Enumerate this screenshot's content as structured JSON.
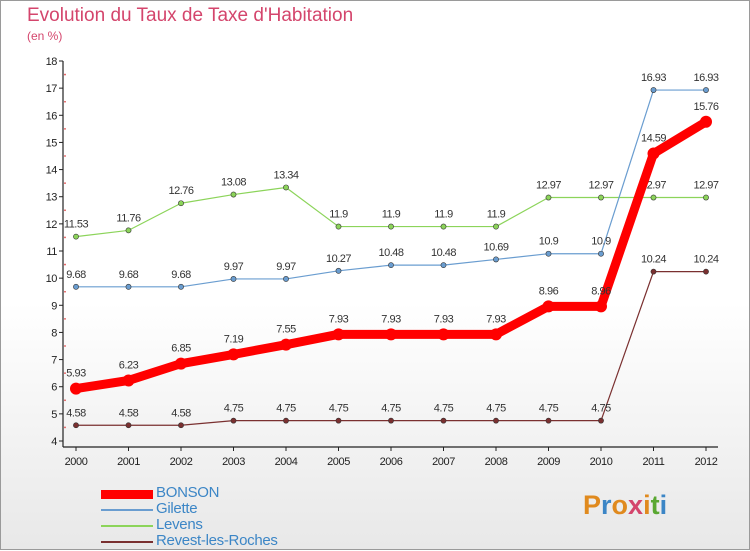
{
  "title": "Evolution du Taux de Taxe d'Habitation",
  "subtitle": "(en %)",
  "logo": {
    "letters": [
      "P",
      "r",
      "o",
      "x",
      "i",
      "t",
      "i"
    ],
    "colors": [
      "#e08a1e",
      "#3c86c6",
      "#e08a1e",
      "#d4456c",
      "#e08a1e",
      "#5aa832",
      "#3c86c6"
    ]
  },
  "chart_data": {
    "type": "line",
    "x": [
      "2000",
      "2001",
      "2002",
      "2003",
      "2004",
      "2005",
      "2006",
      "2007",
      "2008",
      "2009",
      "2010",
      "2011",
      "2012"
    ],
    "yticks": [
      "4",
      "5",
      "6",
      "7",
      "8",
      "9",
      "10",
      "11",
      "12",
      "13",
      "14",
      "15",
      "16",
      "17",
      "18"
    ],
    "ylim": [
      4,
      18
    ],
    "grid": false,
    "legend_position": "bottom-left",
    "series": [
      {
        "name": "Levens",
        "color": "#8cd45a",
        "width": 1.2,
        "marker": 2.6,
        "values": [
          11.53,
          11.76,
          12.76,
          13.08,
          13.34,
          11.9,
          11.9,
          11.9,
          11.9,
          12.97,
          12.97,
          12.97,
          12.97
        ],
        "labels": [
          "11.53",
          "11.76",
          "12.76",
          "13.08",
          "13.34",
          "11.9",
          "11.9",
          "11.9",
          "11.9",
          "12.97",
          "12.97",
          "12.97",
          "12.97"
        ]
      },
      {
        "name": "Gilette",
        "color": "#6a9dd0",
        "width": 1.2,
        "marker": 2.6,
        "values": [
          9.68,
          9.68,
          9.68,
          9.97,
          9.97,
          10.27,
          10.48,
          10.48,
          10.69,
          10.9,
          10.9,
          16.93,
          16.93
        ],
        "labels": [
          "9.68",
          "9.68",
          "9.68",
          "9.97",
          "9.97",
          "10.27",
          "10.48",
          "10.48",
          "10.69",
          "10.9",
          "10.9",
          "16.93",
          "16.93"
        ]
      },
      {
        "name": "Revest-les-Roches",
        "color": "#7a3030",
        "width": 1.2,
        "marker": 2.6,
        "values": [
          4.58,
          4.58,
          4.58,
          4.75,
          4.75,
          4.75,
          4.75,
          4.75,
          4.75,
          4.75,
          4.75,
          10.24,
          10.24
        ],
        "labels": [
          "4.58",
          "4.58",
          "4.58",
          "4.75",
          "4.75",
          "4.75",
          "4.75",
          "4.75",
          "4.75",
          "4.75",
          "4.75",
          "10.24",
          "10.24"
        ]
      },
      {
        "name": "BONSON",
        "color": "#ff0000",
        "width": 9,
        "marker": 6,
        "values": [
          5.93,
          6.23,
          6.85,
          7.19,
          7.55,
          7.93,
          7.93,
          7.93,
          7.93,
          8.96,
          8.96,
          14.59,
          15.76
        ],
        "labels": [
          "5.93",
          "6.23",
          "6.85",
          "7.19",
          "7.55",
          "7.93",
          "7.93",
          "7.93",
          "7.93",
          "8.96",
          "8.96",
          "14.59",
          "15.76"
        ]
      }
    ],
    "legend_order": [
      "BONSON",
      "Gilette",
      "Levens",
      "Revest-les-Roches"
    ]
  }
}
